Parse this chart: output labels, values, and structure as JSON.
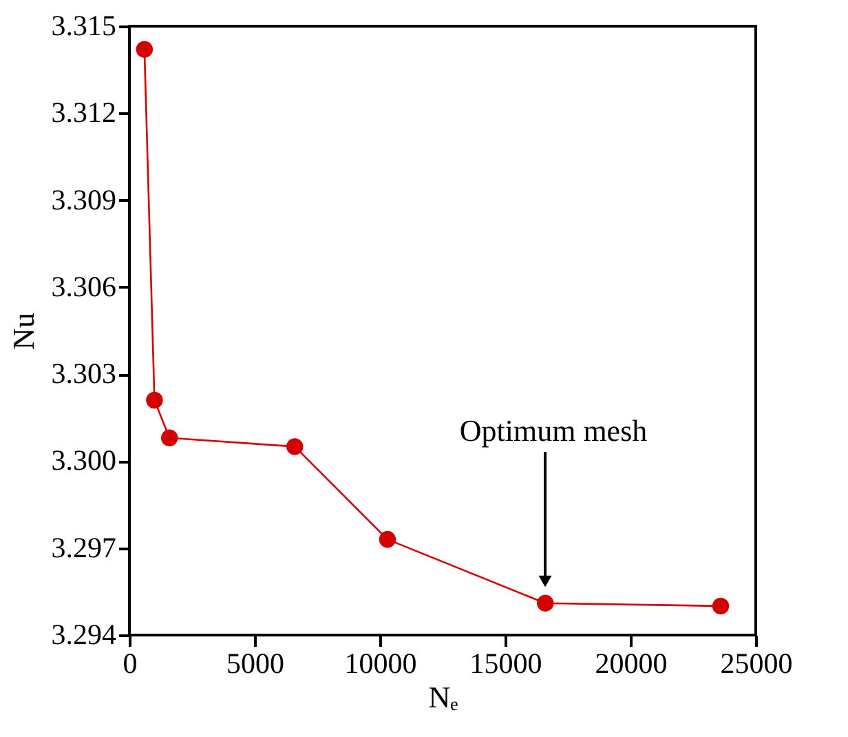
{
  "chart_data": {
    "type": "line",
    "xlabel": "Nₑ",
    "ylabel": "Nu",
    "x": [
      600,
      1000,
      1600,
      6600,
      10300,
      16600,
      23600
    ],
    "series": [
      {
        "color": "#d40000",
        "values": [
          3.3142,
          3.3021,
          3.3008,
          3.3005,
          3.2973,
          3.2951,
          3.295
        ]
      }
    ],
    "xlim": [
      0,
      25000
    ],
    "xticks": [
      0,
      5000,
      10000,
      15000,
      20000,
      25000
    ],
    "ylim": [
      3.294,
      3.315
    ],
    "yticks": [
      {
        "value": 3.294,
        "label": "3.294"
      },
      {
        "value": 3.297,
        "label": "3.297"
      },
      {
        "value": 3.3,
        "label": "3.300"
      },
      {
        "value": 3.303,
        "label": "3.303"
      },
      {
        "value": 3.306,
        "label": "3.306"
      },
      {
        "value": 3.309,
        "label": "3.309"
      },
      {
        "value": 3.312,
        "label": "3.312"
      },
      {
        "value": 3.315,
        "label": "3.315"
      }
    ],
    "marker": "circle",
    "line_style": "solid",
    "grid": false,
    "annotations": [
      "Optimum mesh"
    ]
  }
}
